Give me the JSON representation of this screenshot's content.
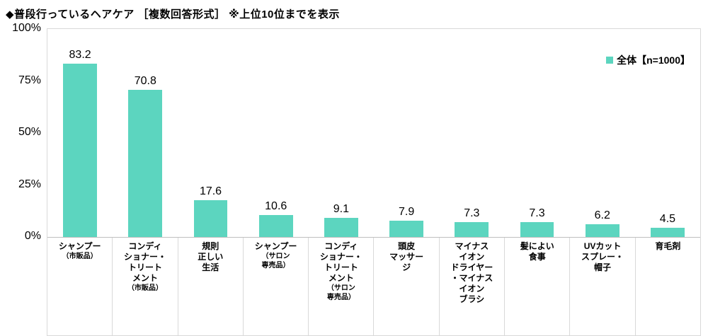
{
  "title": "◆普段行っているヘアケア ［複数回答形式］ ※上位10位までを表示",
  "legend": "全体【n=1000】",
  "colors": {
    "bar": "#5cd5bf",
    "axis_line": "#bfbfbf",
    "grid_border": "#d9d9d9"
  },
  "y_axis": [
    "100%",
    "75%",
    "50%",
    "25%",
    "0%"
  ],
  "chart_data": {
    "type": "bar",
    "title": "普段行っているヘアケア（複数回答形式）上位10位までを表示",
    "legend_entries": [
      "全体【n=1000】"
    ],
    "legend_position": "top-right",
    "ylabel": "%",
    "ylim": [
      0,
      100
    ],
    "y_ticks": [
      0,
      25,
      50,
      75,
      100
    ],
    "grid": false,
    "categories": [
      "シャンプー（市販品）",
      "コンディショナー・トリートメント（市販品）",
      "規則正しい生活",
      "シャンプー（サロン専売品）",
      "コンディショナー・トリートメント（サロン専売品）",
      "頭皮マッサージ",
      "マイナスイオンドライヤー・マイナスイオンブラシ",
      "髪によい食事",
      "UVカットスプレー・帽子",
      "育毛剤"
    ],
    "category_lines": [
      [
        "シャンプー",
        "（市販品）"
      ],
      [
        "コンディ",
        "ショナー・",
        "トリート",
        "メント",
        "（市販品）"
      ],
      [
        "規則",
        "正しい",
        "生活"
      ],
      [
        "シャンプー",
        "（サロン",
        "専売品）"
      ],
      [
        "コンディ",
        "ショナー・",
        "トリート",
        "メント",
        "（サロン",
        "専売品）"
      ],
      [
        "頭皮",
        "マッサー",
        "ジ"
      ],
      [
        "マイナス",
        "イオン",
        "ドライヤー",
        "・マイナス",
        "イオン",
        "ブラシ"
      ],
      [
        "髪によい",
        "食事"
      ],
      [
        "UVカット",
        "スプレー・",
        "帽子"
      ],
      [
        "育毛剤"
      ]
    ],
    "series": [
      {
        "name": "全体【n=1000】",
        "values": [
          83.2,
          70.8,
          17.6,
          10.6,
          9.1,
          7.9,
          7.3,
          7.3,
          6.2,
          4.5
        ]
      }
    ]
  }
}
